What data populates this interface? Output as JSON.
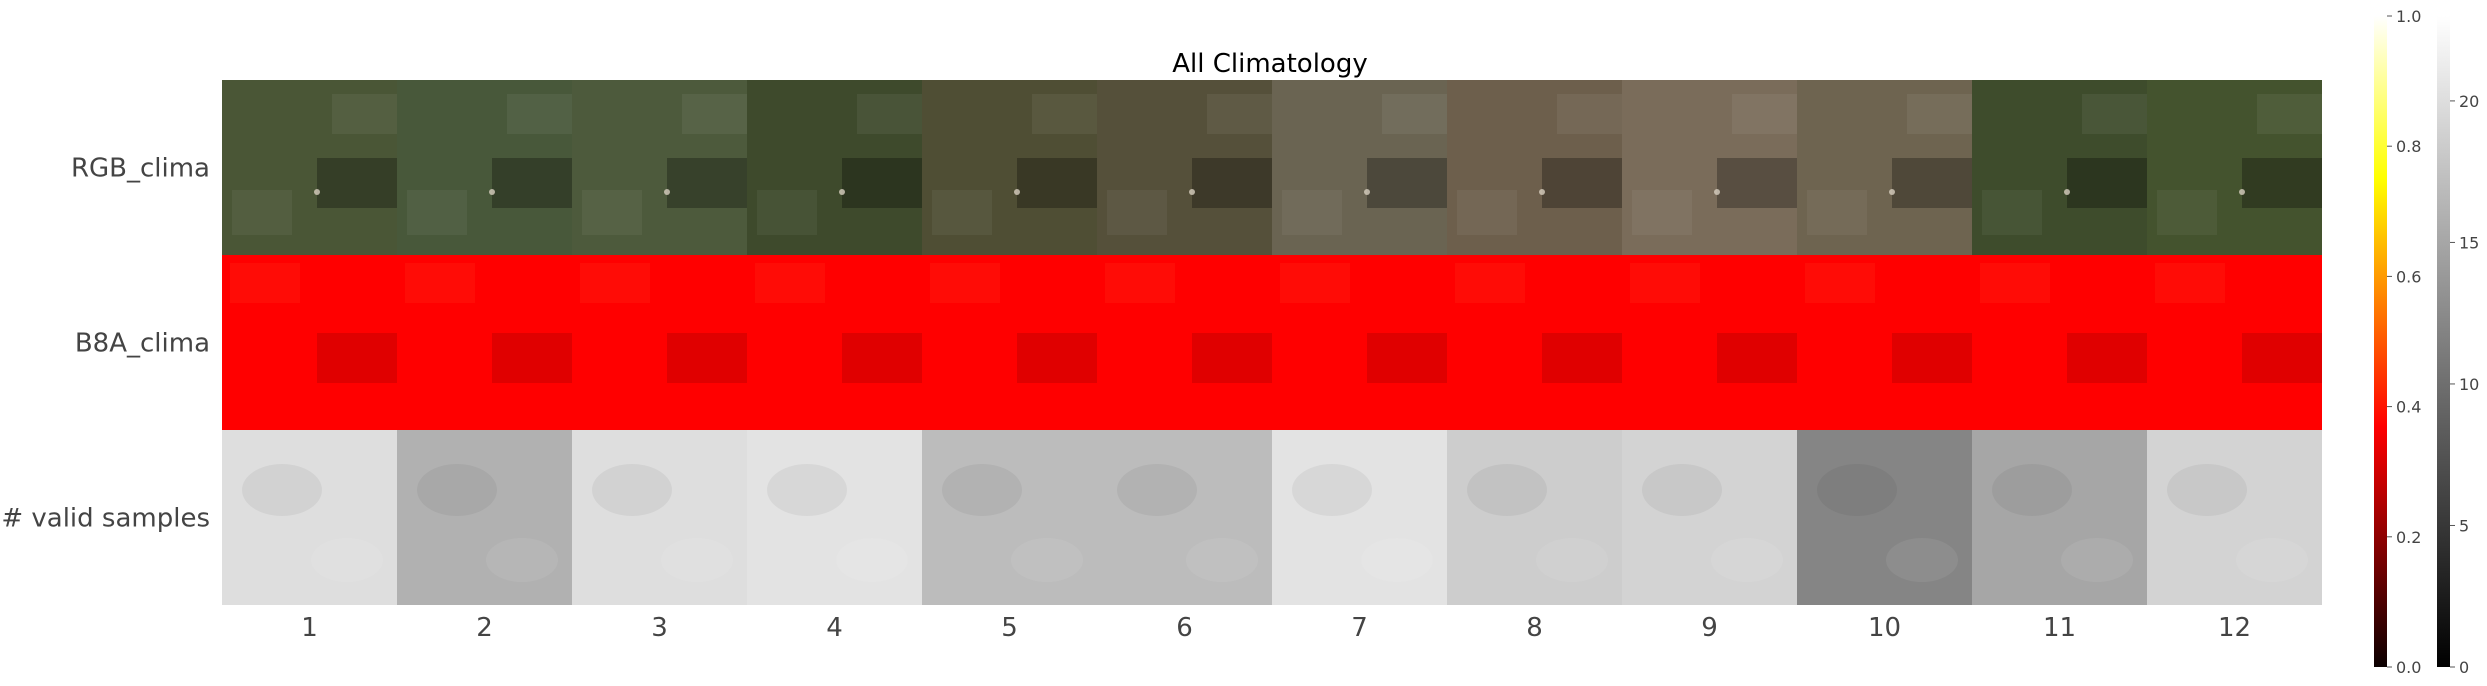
{
  "chart_data": {
    "type": "heatmap",
    "title": "All Climatology",
    "rows": [
      "RGB_clima",
      "B8A_clima",
      "# valid samples"
    ],
    "columns": [
      "1",
      "2",
      "3",
      "4",
      "5",
      "6",
      "7",
      "8",
      "9",
      "10",
      "11",
      "12"
    ],
    "rgb_tint": [
      "#4a5636",
      "#48583a",
      "#4d5a3c",
      "#3e4a2c",
      "#4f4e34",
      "#55503a",
      "#6a6452",
      "#6d5f4c",
      "#7a6c5a",
      "#6e6450",
      "#3e4c2c",
      "#44532e"
    ],
    "b8a_intensity": [
      0.46,
      0.45,
      0.46,
      0.4,
      0.42,
      0.39,
      0.41,
      0.38,
      0.39,
      0.43,
      0.44,
      0.46
    ],
    "valid_samples": [
      20,
      16,
      20,
      20.5,
      17,
      17,
      20.5,
      18.5,
      19,
      12,
      15,
      19
    ],
    "colorbars": [
      {
        "name": "hot",
        "range": [
          0.0,
          1.0
        ],
        "ticks": [
          "0.0",
          "0.2",
          "0.4",
          "0.6",
          "0.8",
          "1.0"
        ]
      },
      {
        "name": "gray",
        "range": [
          0,
          23
        ],
        "ticks": [
          "0",
          "5",
          "10",
          "15",
          "20"
        ]
      }
    ],
    "colors": {
      "red": "#ff0000",
      "text": "#444444",
      "title": "#000000"
    }
  }
}
